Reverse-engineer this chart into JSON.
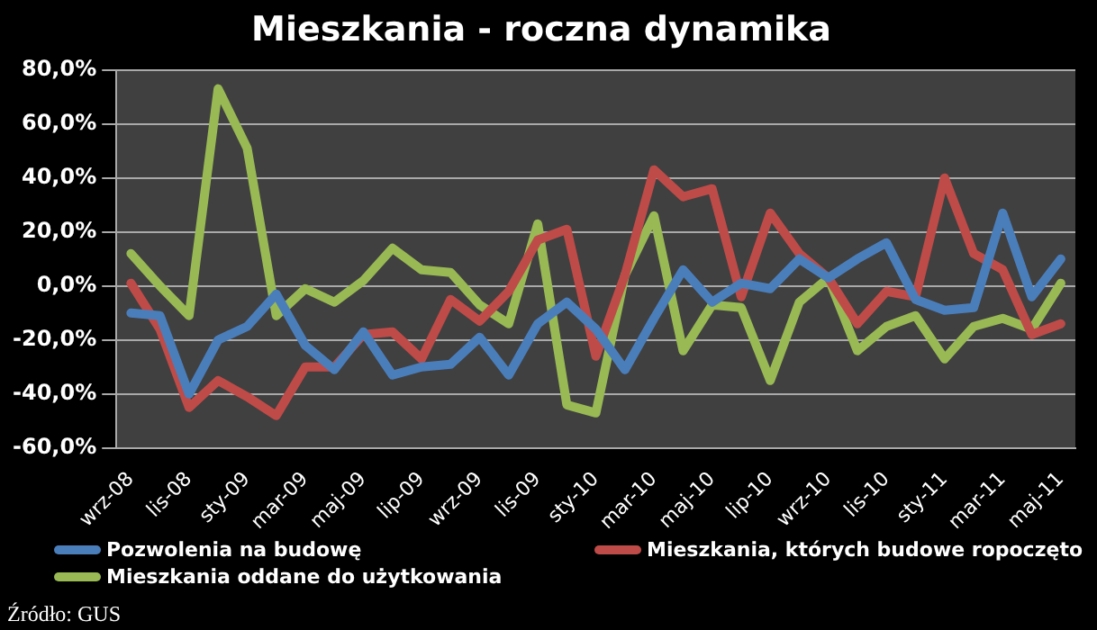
{
  "chart_data": {
    "type": "line",
    "title": "Mieszkania - roczna dynamika",
    "categories": [
      "wrz-08",
      null,
      "lis-08",
      null,
      "sty-09",
      null,
      "mar-09",
      null,
      "maj-09",
      null,
      "lip-09",
      null,
      "wrz-09",
      null,
      "lis-09",
      null,
      "sty-10",
      null,
      "mar-10",
      null,
      "maj-10",
      null,
      "lip-10",
      null,
      "wrz-10",
      null,
      "lis-10",
      null,
      "sty-11",
      null,
      "mar-11",
      null,
      "maj-11"
    ],
    "series": [
      {
        "name": "Pozwolenia na budowę",
        "color": "#4a7ebb",
        "values": [
          -10,
          -11,
          -40,
          -20,
          -15,
          -3,
          -22,
          -31,
          -17,
          -33,
          -30,
          -29,
          -19,
          -33,
          -14,
          -6,
          -16,
          -31,
          -12,
          6,
          -6,
          1,
          -1,
          10,
          3,
          10,
          16,
          -5,
          -9,
          -8,
          27,
          -4,
          10
        ]
      },
      {
        "name": "Mieszkania, których budowe ropoczęto",
        "color": "#be4b48",
        "values": [
          1,
          -16,
          -45,
          -35,
          -41,
          -48,
          -30,
          -30,
          -18,
          -17,
          -27,
          -5,
          -13,
          -2,
          17,
          21,
          -26,
          4,
          43,
          33,
          36,
          -4,
          27,
          12,
          3,
          -14,
          -2,
          -4,
          40,
          12,
          6,
          -18,
          -14
        ]
      },
      {
        "name": "Mieszkania oddane  do użytkowania",
        "color": "#98b954",
        "values": [
          12,
          0,
          -11,
          73,
          51,
          -11,
          -1,
          -6,
          2,
          14,
          6,
          5,
          -7,
          -14,
          23,
          -44,
          -47,
          4,
          26,
          -24,
          -7,
          -8,
          -35,
          -6,
          3,
          -24,
          -15,
          -11,
          -27,
          -15,
          -12,
          -16,
          1
        ]
      }
    ],
    "ylim": [
      -60,
      80
    ],
    "yticks": [
      {
        "value": -60,
        "label": "-60,0%"
      },
      {
        "value": -40,
        "label": "-40,0%"
      },
      {
        "value": -20,
        "label": "-20,0%"
      },
      {
        "value": 0,
        "label": "0,0%"
      },
      {
        "value": 20,
        "label": "20,0%"
      },
      {
        "value": 40,
        "label": "40,0%"
      },
      {
        "value": 60,
        "label": "60,0%"
      },
      {
        "value": 80,
        "label": "80,0%"
      }
    ],
    "grid": "y",
    "legend": "bottom",
    "marker": "none",
    "line_style": "solid",
    "annotations": [
      "Źródło: GUS"
    ]
  }
}
